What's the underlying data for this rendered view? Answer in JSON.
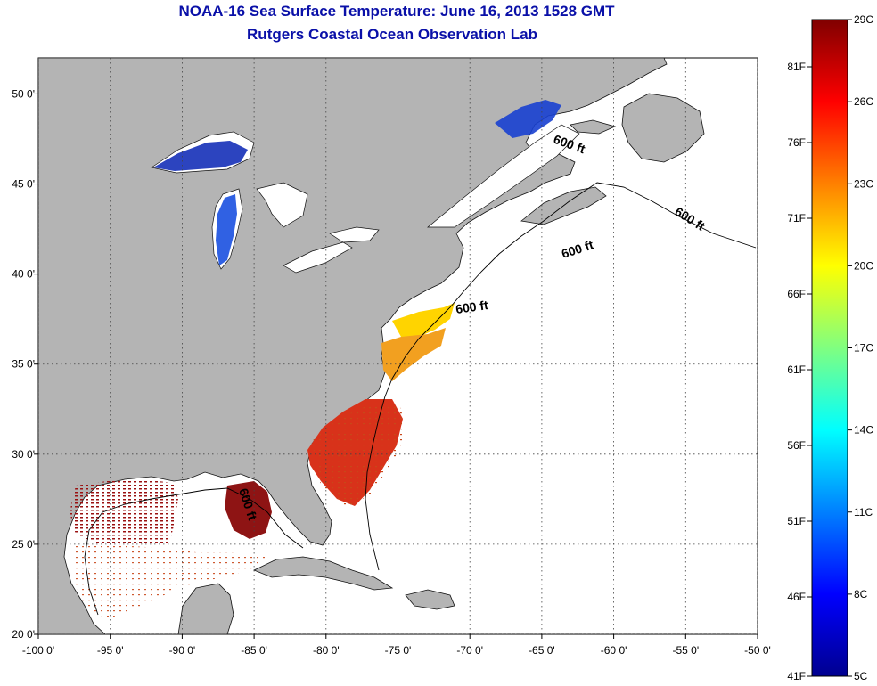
{
  "title": "NOAA-16 Sea Surface Temperature:  June 16, 2013 1528 GMT",
  "subtitle": "Rutgers Coastal Ocean Observation Lab",
  "map": {
    "lon_range": [
      -100,
      -50
    ],
    "lat_range": [
      20,
      52
    ],
    "lon_ticks": [
      "-100 0'",
      "-95 0'",
      "-90 0'",
      "-85 0'",
      "-80 0'",
      "-75 0'",
      "-70 0'",
      "-65 0'",
      "-60 0'",
      "-55 0'",
      "-50 0'"
    ],
    "lat_ticks": [
      "20 0'",
      "25 0'",
      "30 0'",
      "35 0'",
      "40 0'",
      "45 0'",
      "50 0'"
    ],
    "land_color": "#b4b4b4",
    "ocean_color": "#ffffff",
    "grid": "dotted",
    "contour_label": "600 ft"
  },
  "colorbar": {
    "min_c": 5,
    "max_c": 29,
    "celsius_labels": [
      "29C",
      "26C",
      "23C",
      "20C",
      "17C",
      "14C",
      "11C",
      "8C",
      "5C"
    ],
    "fahrenheit_labels": [
      "81F",
      "76F",
      "71F",
      "66F",
      "61F",
      "56F",
      "51F",
      "46F",
      "41F"
    ],
    "colors": [
      "#00008f",
      "#0000ff",
      "#0080ff",
      "#00ffff",
      "#80ff80",
      "#ffff00",
      "#ff8000",
      "#ff0000",
      "#800000"
    ]
  }
}
